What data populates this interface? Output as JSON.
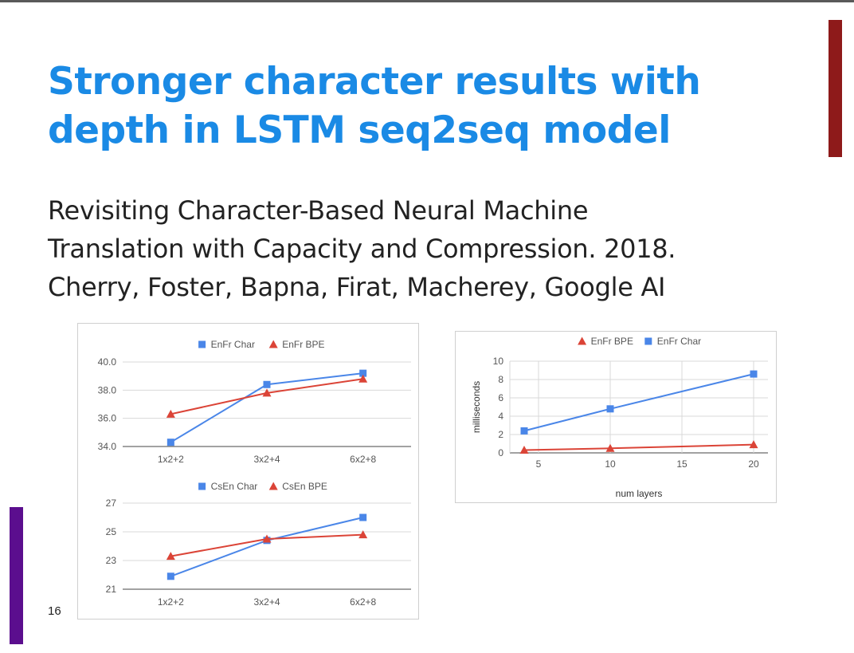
{
  "slide": {
    "title_lines": [
      "Stronger character results with",
      "depth in LSTM seq2seq model"
    ],
    "subtitle_lines": [
      "Revisiting Character-Based Neural Machine",
      "Translation with Capacity and Compression. 2018.",
      "Cherry, Foster, Bapna, Firat, Macherey, Google AI"
    ],
    "page_number": "16",
    "colors": {
      "title": "#1a8ae5",
      "accent_right": "#8e1a1a",
      "accent_left": "#5b0e8e",
      "char_series": "#4a86e8",
      "bpe_series": "#db4437"
    }
  },
  "chart_data": [
    {
      "type": "line",
      "categories": [
        "1x2+2",
        "3x2+4",
        "6x2+8"
      ],
      "series": [
        {
          "name": "EnFr Char",
          "marker": "square",
          "color": "#4a86e8",
          "values": [
            34.3,
            38.4,
            39.2
          ]
        },
        {
          "name": "EnFr BPE",
          "marker": "triangle",
          "color": "#db4437",
          "values": [
            36.3,
            37.8,
            38.8
          ]
        }
      ],
      "ylim": [
        34.0,
        40.0
      ],
      "yticks": [
        "34.0",
        "36.0",
        "38.0",
        "40.0"
      ],
      "legend": "top",
      "grid": true
    },
    {
      "type": "line",
      "categories": [
        "1x2+2",
        "3x2+4",
        "6x2+8"
      ],
      "series": [
        {
          "name": "CsEn Char",
          "marker": "square",
          "color": "#4a86e8",
          "values": [
            21.9,
            24.4,
            26.0
          ]
        },
        {
          "name": "CsEn BPE",
          "marker": "triangle",
          "color": "#db4437",
          "values": [
            23.3,
            24.5,
            24.8
          ]
        }
      ],
      "ylim": [
        21,
        27
      ],
      "yticks": [
        "21",
        "23",
        "25",
        "27"
      ],
      "legend": "top",
      "grid": true
    },
    {
      "type": "line",
      "x": [
        4,
        10,
        20
      ],
      "series": [
        {
          "name": "EnFr BPE",
          "marker": "triangle",
          "color": "#db4437",
          "values": [
            0.3,
            0.5,
            0.9
          ]
        },
        {
          "name": "EnFr Char",
          "marker": "square",
          "color": "#4a86e8",
          "values": [
            2.4,
            4.8,
            8.6
          ]
        }
      ],
      "xlim": [
        3,
        21
      ],
      "xticks": [
        5,
        10,
        15,
        20
      ],
      "ylim": [
        0,
        10
      ],
      "yticks": [
        0,
        2,
        4,
        6,
        8,
        10
      ],
      "xlabel": "num layers",
      "ylabel": "milliseconds",
      "legend": "top",
      "grid": true
    }
  ]
}
